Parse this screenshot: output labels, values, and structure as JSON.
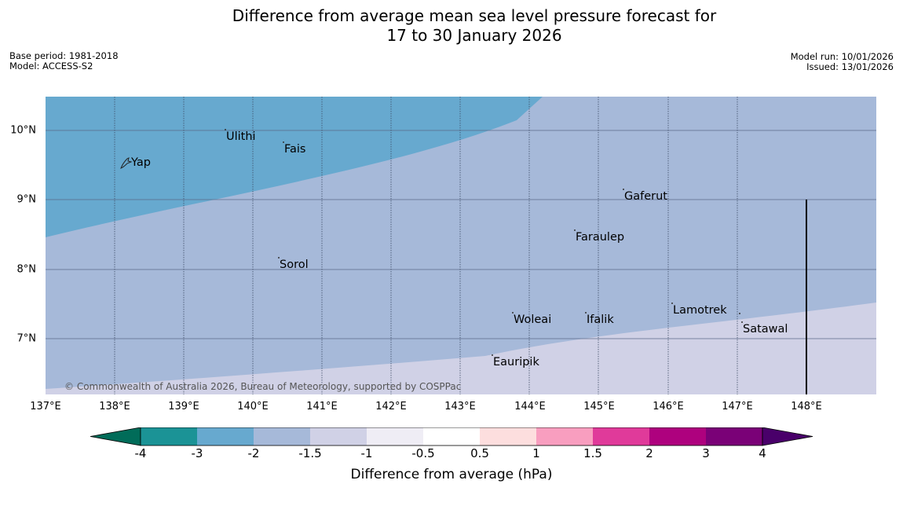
{
  "title": {
    "line1": "Difference from average mean sea level pressure forecast for",
    "line2": "17 to 30 January 2026"
  },
  "meta": {
    "base_period": "Base period: 1981-2018",
    "model": "Model: ACCESS-S2",
    "model_run": "Model run: 10/01/2026",
    "issued": "Issued: 13/01/2026"
  },
  "map": {
    "lat_labels": [
      "10°N",
      "9°N",
      "8°N",
      "7°N"
    ],
    "lon_labels": [
      "137°E",
      "138°E",
      "139°E",
      "140°E",
      "141°E",
      "142°E",
      "143°E",
      "144°E",
      "145°E",
      "146°E",
      "147°E",
      "148°E"
    ],
    "places": [
      "Yap",
      "Ulithi",
      "Fais",
      "Gaferut",
      "Faraulep",
      "Sorol",
      "Woleai",
      "Ifalik",
      "Lamotrek",
      "Satawal",
      "Eauripik"
    ],
    "copyright": "© Commonwealth of Australia 2026, Bureau of Meteorology, supported by COSPPac",
    "colors": {
      "band_minus3_to_minus2": "#67a9cf",
      "band_minus2_to_minus1_5": "#a6b9d9",
      "band_minus1_5_to_minus1": "#d0d1e6"
    }
  },
  "legend": {
    "ticks": [
      "-4",
      "-3",
      "-2",
      "-1.5",
      "-1",
      "-0.5",
      "0.5",
      "1",
      "1.5",
      "2",
      "3",
      "4"
    ],
    "label": "Difference from average (hPa)",
    "colors": [
      "#1b9396",
      "#67a9cf",
      "#a6b9d9",
      "#d0d1e6",
      "#efedf5",
      "#ffffff",
      "#fddede",
      "#f89ebf",
      "#e03a9a",
      "#ae017e",
      "#7a0177"
    ],
    "under_color": "#016c59",
    "over_color": "#49006a"
  }
}
